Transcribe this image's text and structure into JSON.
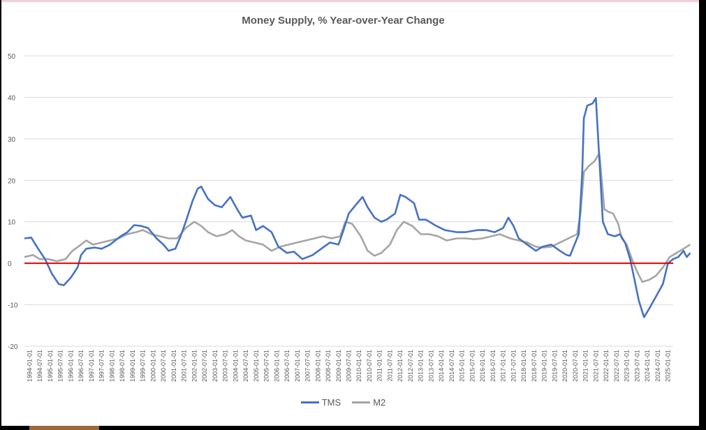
{
  "chart_data": {
    "type": "line",
    "title": "Money Supply, % Year-over-Year Change",
    "xlabel": "",
    "ylabel": "",
    "ylim": [
      -20,
      50
    ],
    "yticks": [
      -20,
      -10,
      0,
      10,
      20,
      30,
      40,
      50
    ],
    "grid": true,
    "legend": "bottom",
    "reference_line": {
      "y": 0,
      "color": "#e00000"
    },
    "x_tick_labels": [
      "1994-01-01",
      "1994-07-01",
      "1995-01-01",
      "1995-07-01",
      "1996-01-01",
      "1996-07-01",
      "1997-01-01",
      "1997-07-01",
      "1998-01-01",
      "1998-07-01",
      "1999-01-01",
      "1999-07-01",
      "2000-01-01",
      "2000-07-01",
      "2001-01-01",
      "2001-07-01",
      "2002-01-01",
      "2002-07-01",
      "2003-01-01",
      "2003-07-01",
      "2004-01-01",
      "2004-07-01",
      "2005-01-01",
      "2005-07-01",
      "2006-01-01",
      "2006-07-01",
      "2007-01-01",
      "2007-07-01",
      "2008-01-01",
      "2008-07-01",
      "2009-01-01",
      "2009-07-01",
      "2010-01-01",
      "2010-07-01",
      "2011-01-01",
      "2011-07-01",
      "2012-01-01",
      "2012-07-01",
      "2013-01-01",
      "2013-07-01",
      "2014-01-01",
      "2014-07-01",
      "2015-01-01",
      "2015-07-01",
      "2016-01-01",
      "2016-07-01",
      "2017-01-01",
      "2017-07-01",
      "2018-01-01",
      "2018-07-01",
      "2019-01-01",
      "2019-07-01",
      "2020-01-01",
      "2020-07-01",
      "2021-01-01",
      "2021-07-01",
      "2022-01-01",
      "2022-07-01",
      "2023-01-01",
      "2023-07-01",
      "2024-01-01",
      "2024-07-01",
      "2025-01-01"
    ],
    "series": [
      {
        "name": "TMS",
        "color": "#4472c4",
        "points": [
          [
            "1994-01-01",
            6.0
          ],
          [
            "1994-05-01",
            6.2
          ],
          [
            "1994-09-01",
            3.5
          ],
          [
            "1995-01-01",
            1.0
          ],
          [
            "1995-05-01",
            -2.5
          ],
          [
            "1995-09-01",
            -5.0
          ],
          [
            "1995-12-01",
            -5.3
          ],
          [
            "1996-04-01",
            -3.5
          ],
          [
            "1996-08-01",
            -1.0
          ],
          [
            "1996-10-01",
            2.0
          ],
          [
            "1997-01-01",
            3.5
          ],
          [
            "1997-06-01",
            3.8
          ],
          [
            "1997-10-01",
            3.5
          ],
          [
            "1998-03-01",
            4.5
          ],
          [
            "1998-09-01",
            6.5
          ],
          [
            "1999-01-01",
            7.5
          ],
          [
            "1999-05-01",
            9.2
          ],
          [
            "1999-09-01",
            9.0
          ],
          [
            "2000-01-01",
            8.5
          ],
          [
            "2000-06-01",
            6.0
          ],
          [
            "2000-10-01",
            4.5
          ],
          [
            "2001-01-01",
            3.0
          ],
          [
            "2001-05-01",
            3.5
          ],
          [
            "2001-08-01",
            6.5
          ],
          [
            "2001-11-01",
            10.0
          ],
          [
            "2002-03-01",
            15.0
          ],
          [
            "2002-06-01",
            18.0
          ],
          [
            "2002-08-01",
            18.5
          ],
          [
            "2002-12-01",
            15.5
          ],
          [
            "2003-04-01",
            14.0
          ],
          [
            "2003-08-01",
            13.5
          ],
          [
            "2004-01-01",
            16.0
          ],
          [
            "2004-05-01",
            13.0
          ],
          [
            "2004-08-01",
            11.0
          ],
          [
            "2005-01-01",
            11.5
          ],
          [
            "2005-04-01",
            8.0
          ],
          [
            "2005-08-01",
            9.0
          ],
          [
            "2006-01-01",
            7.5
          ],
          [
            "2006-05-01",
            4.0
          ],
          [
            "2006-10-01",
            2.5
          ],
          [
            "2007-02-01",
            2.8
          ],
          [
            "2007-07-01",
            1.0
          ],
          [
            "2008-01-01",
            2.0
          ],
          [
            "2008-06-01",
            3.5
          ],
          [
            "2008-11-01",
            5.0
          ],
          [
            "2009-04-01",
            4.5
          ],
          [
            "2009-07-01",
            8.0
          ],
          [
            "2009-10-01",
            12.0
          ],
          [
            "2010-03-01",
            14.5
          ],
          [
            "2010-06-01",
            16.0
          ],
          [
            "2010-09-01",
            13.5
          ],
          [
            "2011-01-01",
            11.0
          ],
          [
            "2011-05-01",
            10.0
          ],
          [
            "2011-08-01",
            10.5
          ],
          [
            "2012-01-01",
            12.0
          ],
          [
            "2012-04-01",
            16.5
          ],
          [
            "2012-07-01",
            16.0
          ],
          [
            "2012-12-01",
            14.5
          ],
          [
            "2013-03-01",
            10.5
          ],
          [
            "2013-07-01",
            10.5
          ],
          [
            "2014-01-01",
            9.0
          ],
          [
            "2014-06-01",
            8.0
          ],
          [
            "2015-01-01",
            7.5
          ],
          [
            "2015-06-01",
            7.5
          ],
          [
            "2016-01-01",
            8.0
          ],
          [
            "2016-06-01",
            8.0
          ],
          [
            "2016-11-01",
            7.5
          ],
          [
            "2017-04-01",
            8.5
          ],
          [
            "2017-07-01",
            11.0
          ],
          [
            "2017-10-01",
            9.0
          ],
          [
            "2018-01-01",
            6.0
          ],
          [
            "2018-06-01",
            4.5
          ],
          [
            "2018-11-01",
            3.0
          ],
          [
            "2019-03-01",
            4.0
          ],
          [
            "2019-08-01",
            4.5
          ],
          [
            "2020-01-01",
            3.0
          ],
          [
            "2020-05-01",
            2.0
          ],
          [
            "2020-07-01",
            1.8
          ],
          [
            "2020-09-01",
            4.0
          ],
          [
            "2020-12-01",
            7.0
          ],
          [
            "2021-02-01",
            22.0
          ],
          [
            "2021-03-01",
            35.0
          ],
          [
            "2021-05-01",
            38.0
          ],
          [
            "2021-08-01",
            38.5
          ],
          [
            "2021-10-01",
            39.8
          ],
          [
            "2021-12-01",
            25.0
          ],
          [
            "2022-02-01",
            10.0
          ],
          [
            "2022-05-01",
            7.0
          ],
          [
            "2022-09-01",
            6.5
          ],
          [
            "2022-12-01",
            7.0
          ],
          [
            "2023-03-01",
            5.0
          ],
          [
            "2023-06-01",
            1.0
          ],
          [
            "2023-09-01",
            -5.0
          ],
          [
            "2023-11-01",
            -9.0
          ],
          [
            "2024-02-01",
            -13.0
          ],
          [
            "2024-05-01",
            -11.0
          ],
          [
            "2024-09-01",
            -8.0
          ],
          [
            "2025-01-01",
            -5.0
          ],
          [
            "2025-04-01",
            0.0
          ],
          [
            "2025-07-01",
            1.0
          ],
          [
            "2025-10-01",
            1.5
          ],
          [
            "2026-01-01",
            3.0
          ],
          [
            "2026-03-01",
            1.5
          ],
          [
            "2026-05-01",
            2.5
          ]
        ]
      },
      {
        "name": "M2",
        "color": "#a5a5a5",
        "points": [
          [
            "1994-01-01",
            1.5
          ],
          [
            "1994-06-01",
            2.0
          ],
          [
            "1994-10-01",
            1.0
          ],
          [
            "1995-03-01",
            1.0
          ],
          [
            "1995-08-01",
            0.5
          ],
          [
            "1996-01-01",
            1.0
          ],
          [
            "1996-05-01",
            3.0
          ],
          [
            "1996-10-01",
            4.5
          ],
          [
            "1997-01-01",
            5.5
          ],
          [
            "1997-05-01",
            4.5
          ],
          [
            "1997-10-01",
            5.0
          ],
          [
            "1998-03-01",
            5.5
          ],
          [
            "1998-08-01",
            6.0
          ],
          [
            "1999-01-01",
            7.0
          ],
          [
            "1999-06-01",
            7.5
          ],
          [
            "1999-10-01",
            8.0
          ],
          [
            "2000-03-01",
            7.0
          ],
          [
            "2000-08-01",
            6.5
          ],
          [
            "2001-01-01",
            6.0
          ],
          [
            "2001-06-01",
            6.0
          ],
          [
            "2001-11-01",
            8.5
          ],
          [
            "2002-04-01",
            10.0
          ],
          [
            "2002-08-01",
            9.0
          ],
          [
            "2002-12-01",
            7.5
          ],
          [
            "2003-05-01",
            6.5
          ],
          [
            "2003-10-01",
            7.0
          ],
          [
            "2004-02-01",
            8.0
          ],
          [
            "2004-06-01",
            6.5
          ],
          [
            "2004-10-01",
            5.5
          ],
          [
            "2005-03-01",
            5.0
          ],
          [
            "2005-08-01",
            4.5
          ],
          [
            "2006-01-01",
            3.0
          ],
          [
            "2006-06-01",
            4.0
          ],
          [
            "2006-11-01",
            4.5
          ],
          [
            "2007-04-01",
            5.0
          ],
          [
            "2007-09-01",
            5.5
          ],
          [
            "2008-02-01",
            6.0
          ],
          [
            "2008-07-01",
            6.5
          ],
          [
            "2008-12-01",
            6.0
          ],
          [
            "2009-05-01",
            6.5
          ],
          [
            "2009-08-01",
            10.0
          ],
          [
            "2009-12-01",
            9.5
          ],
          [
            "2010-05-01",
            6.5
          ],
          [
            "2010-09-01",
            3.0
          ],
          [
            "2011-01-01",
            1.8
          ],
          [
            "2011-05-01",
            2.5
          ],
          [
            "2011-10-01",
            4.5
          ],
          [
            "2012-02-01",
            8.0
          ],
          [
            "2012-06-01",
            10.0
          ],
          [
            "2012-11-01",
            9.0
          ],
          [
            "2013-04-01",
            7.0
          ],
          [
            "2013-09-01",
            7.0
          ],
          [
            "2014-02-01",
            6.5
          ],
          [
            "2014-07-01",
            5.5
          ],
          [
            "2015-01-01",
            6.0
          ],
          [
            "2015-06-01",
            6.0
          ],
          [
            "2015-11-01",
            5.8
          ],
          [
            "2016-04-01",
            6.0
          ],
          [
            "2016-09-01",
            6.5
          ],
          [
            "2017-02-01",
            7.0
          ],
          [
            "2017-08-01",
            6.0
          ],
          [
            "2018-01-01",
            5.5
          ],
          [
            "2018-06-01",
            5.0
          ],
          [
            "2018-11-01",
            4.0
          ],
          [
            "2019-03-01",
            3.8
          ],
          [
            "2019-08-01",
            4.0
          ],
          [
            "2020-01-01",
            5.0
          ],
          [
            "2020-06-01",
            6.0
          ],
          [
            "2020-11-01",
            7.0
          ],
          [
            "2021-01-01",
            12.0
          ],
          [
            "2021-03-01",
            22.0
          ],
          [
            "2021-06-01",
            23.5
          ],
          [
            "2021-09-01",
            24.5
          ],
          [
            "2021-12-01",
            26.5
          ],
          [
            "2022-03-01",
            13.0
          ],
          [
            "2022-05-01",
            12.5
          ],
          [
            "2022-08-01",
            12.0
          ],
          [
            "2022-11-01",
            9.5
          ],
          [
            "2023-01-01",
            6.0
          ],
          [
            "2023-04-01",
            4.5
          ],
          [
            "2023-07-01",
            1.0
          ],
          [
            "2023-10-01",
            -2.0
          ],
          [
            "2024-01-01",
            -4.5
          ],
          [
            "2024-05-01",
            -4.0
          ],
          [
            "2024-09-01",
            -3.0
          ],
          [
            "2025-01-01",
            -1.0
          ],
          [
            "2025-05-01",
            1.5
          ],
          [
            "2025-09-01",
            2.5
          ],
          [
            "2026-01-01",
            3.5
          ],
          [
            "2026-05-01",
            4.5
          ]
        ]
      }
    ]
  }
}
